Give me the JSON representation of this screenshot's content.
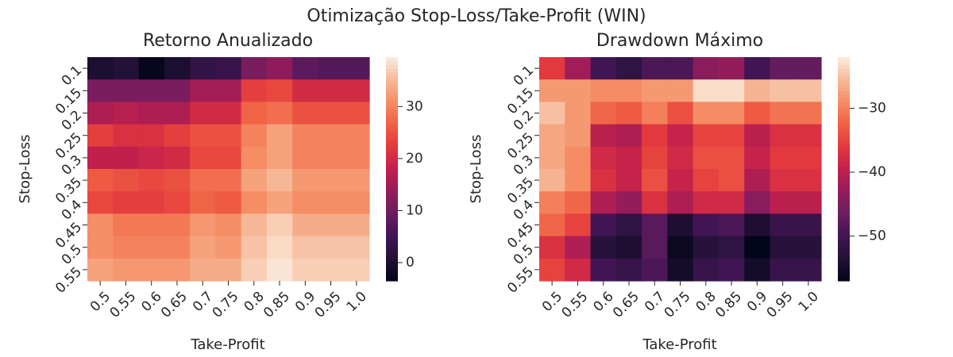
{
  "figure": {
    "title": "Otimização Stop-Loss/Take-Profit (WIN)"
  },
  "chart_data": [
    {
      "type": "heatmap",
      "title": "Retorno Anualizado",
      "xlabel": "Take-Profit",
      "ylabel": "Stop-Loss",
      "x_categories": [
        "0.5",
        "0.55",
        "0.6",
        "0.65",
        "0.7",
        "0.75",
        "0.8",
        "0.85",
        "0.9",
        "0.95",
        "1.0"
      ],
      "y_categories": [
        "0.1",
        "0.15",
        "0.2",
        "0.25",
        "0.3",
        "0.35",
        "0.4",
        "0.45",
        "0.5",
        "0.55"
      ],
      "colorbar": {
        "min": -3.5,
        "max": 39.5,
        "ticks": [
          0,
          10,
          20,
          30
        ]
      },
      "colormap": "rocket",
      "values": [
        [
          0,
          1,
          -3,
          0,
          3,
          4,
          11,
          13,
          8,
          7,
          7
        ],
        [
          11,
          11,
          11,
          11,
          15,
          15,
          23,
          24,
          20,
          20,
          20
        ],
        [
          16,
          17,
          16,
          16,
          20,
          20,
          27,
          28,
          25,
          25,
          25
        ],
        [
          23,
          21,
          21,
          23,
          25,
          25,
          30,
          33,
          30,
          30,
          30
        ],
        [
          18,
          18,
          19,
          20,
          24,
          24,
          31,
          33,
          30,
          30,
          30
        ],
        [
          26,
          25,
          24,
          25,
          28,
          28,
          33,
          35,
          32,
          32,
          32
        ],
        [
          24,
          23,
          23,
          24,
          27,
          26,
          31,
          33,
          31,
          31,
          31
        ],
        [
          31,
          29,
          29,
          29,
          32,
          31,
          35,
          37,
          34,
          34,
          34
        ],
        [
          31,
          30,
          30,
          30,
          33,
          32,
          36,
          38,
          36,
          36,
          36
        ],
        [
          33,
          32,
          32,
          32,
          34,
          34,
          37,
          39,
          37,
          37,
          37
        ]
      ]
    },
    {
      "type": "heatmap",
      "title": "Drawdown Máximo",
      "xlabel": "Take-Profit",
      "ylabel": "Stop-Loss",
      "x_categories": [
        "0.5",
        "0.55",
        "0.6",
        "0.65",
        "0.7",
        "0.75",
        "0.8",
        "0.85",
        "0.9",
        "0.95",
        "1.0"
      ],
      "y_categories": [
        "0.1",
        "0.15",
        "0.2",
        "0.25",
        "0.3",
        "0.35",
        "0.4",
        "0.45",
        "0.5",
        "0.55"
      ],
      "colorbar": {
        "min": -57,
        "max": -22,
        "ticks": [
          -30,
          -40,
          -50
        ]
      },
      "colormap": "rocket",
      "values": [
        [
          -36,
          -42,
          -50,
          -52,
          -49,
          -49,
          -44,
          -43,
          -50,
          -47,
          -47
        ],
        [
          -28,
          -28,
          -29,
          -29,
          -28,
          -28,
          -23,
          -23,
          -26,
          -25,
          -25
        ],
        [
          -25,
          -28,
          -32,
          -33,
          -30,
          -34,
          -29,
          -29,
          -33,
          -31,
          -31
        ],
        [
          -27,
          -28,
          -40,
          -41,
          -36,
          -39,
          -35,
          -35,
          -40,
          -37,
          -37
        ],
        [
          -27,
          -29,
          -38,
          -39,
          -35,
          -38,
          -34,
          -34,
          -39,
          -36,
          -36
        ],
        [
          -26,
          -29,
          -37,
          -39,
          -34,
          -39,
          -35,
          -34,
          -41,
          -37,
          -37
        ],
        [
          -30,
          -32,
          -41,
          -43,
          -37,
          -41,
          -38,
          -38,
          -44,
          -40,
          -40
        ],
        [
          -32,
          -35,
          -50,
          -52,
          -48,
          -54,
          -50,
          -49,
          -54,
          -51,
          -51
        ],
        [
          -37,
          -41,
          -53,
          -54,
          -48,
          -56,
          -53,
          -52,
          -57,
          -53,
          -53
        ],
        [
          -35,
          -38,
          -50,
          -51,
          -49,
          -55,
          -51,
          -50,
          -55,
          -51,
          -51
        ]
      ]
    }
  ]
}
